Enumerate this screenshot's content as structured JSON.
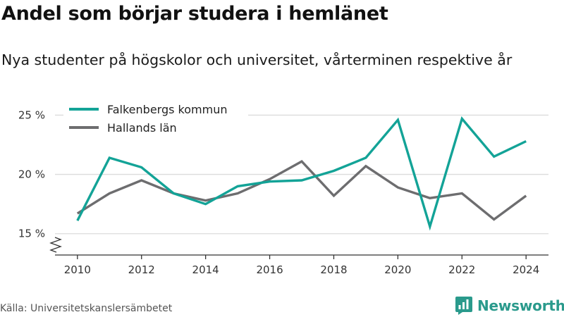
{
  "title": "Andel som börjar studera i hemlänet",
  "subtitle": "Nya studenter på högskolor och universitet, vårterminen respektive år",
  "source": "Källa: Universitetskanslersämbetet",
  "brand": "Newsworthy",
  "colors": {
    "falkenberg": "#13a397",
    "halland": "#6d6d6f",
    "grid": "#dcdcdc",
    "axis": "#333333",
    "brand": "#2a9a8c"
  },
  "chart_data": {
    "type": "line",
    "title": "Andel som börjar studera i hemlänet",
    "subtitle": "Nya studenter på högskolor och universitet, vårterminen respektive år",
    "x": [
      2010,
      2011,
      2012,
      2013,
      2014,
      2015,
      2016,
      2017,
      2018,
      2019,
      2020,
      2021,
      2022,
      2023,
      2024
    ],
    "x_ticks": [
      "2010",
      "2012",
      "2014",
      "2016",
      "2018",
      "2020",
      "2022",
      "2024"
    ],
    "y_ticks": [
      {
        "value": 15,
        "label": "15 %"
      },
      {
        "value": 20,
        "label": "20 %"
      },
      {
        "value": 25,
        "label": "25 %"
      }
    ],
    "ylim": [
      13.2,
      25.8
    ],
    "xlim": [
      2009.3,
      2024.7
    ],
    "y_axis_break": true,
    "grid": true,
    "legend_position": "top-left",
    "series": [
      {
        "name": "Falkenbergs kommun",
        "color": "#13a397",
        "values": [
          16.1,
          21.4,
          20.6,
          18.4,
          17.5,
          19.0,
          19.4,
          19.5,
          20.3,
          21.4,
          24.6,
          15.6,
          24.7,
          21.5,
          22.8
        ]
      },
      {
        "name": "Hallands län",
        "color": "#6d6d6f",
        "values": [
          16.7,
          18.4,
          19.5,
          18.4,
          17.8,
          18.4,
          19.6,
          21.1,
          18.2,
          20.7,
          18.9,
          18.0,
          18.4,
          16.2,
          18.2
        ]
      }
    ]
  }
}
